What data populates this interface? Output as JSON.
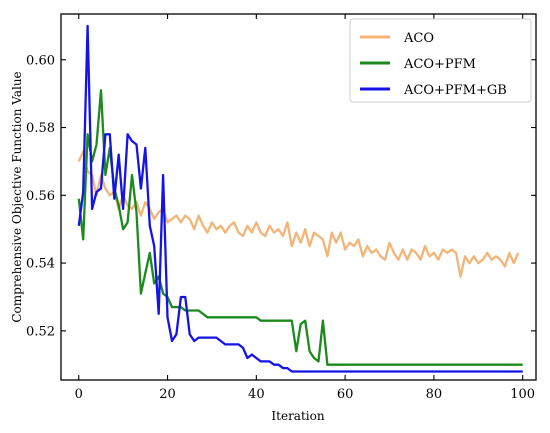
{
  "chart_data": {
    "type": "line",
    "title": "",
    "xlabel": "Iteration",
    "ylabel": "Comprehensive Objective Function Value",
    "xlim": [
      -4,
      103
    ],
    "ylim": [
      0.5055,
      0.6135
    ],
    "xticks": [
      0,
      20,
      40,
      60,
      80,
      100
    ],
    "xtick_labels": [
      "0",
      "20",
      "40",
      "60",
      "80",
      "100"
    ],
    "yticks": [
      0.52,
      0.54,
      0.56,
      0.58,
      0.6
    ],
    "ytick_labels": [
      "0.52",
      "0.54",
      "0.56",
      "0.58",
      "0.60"
    ],
    "grid": false,
    "legend_position": "top-right",
    "series": [
      {
        "name": "ACO",
        "color": "#f2b477",
        "x": [
          0,
          1,
          2,
          3,
          4,
          5,
          6,
          7,
          8,
          9,
          10,
          11,
          12,
          13,
          14,
          15,
          16,
          17,
          18,
          19,
          20,
          21,
          22,
          23,
          24,
          25,
          26,
          27,
          28,
          29,
          30,
          31,
          32,
          33,
          34,
          35,
          36,
          37,
          38,
          39,
          40,
          41,
          42,
          43,
          44,
          45,
          46,
          47,
          48,
          49,
          50,
          51,
          52,
          53,
          54,
          55,
          56,
          57,
          58,
          59,
          60,
          61,
          62,
          63,
          64,
          65,
          66,
          67,
          68,
          69,
          70,
          71,
          72,
          73,
          74,
          75,
          76,
          77,
          78,
          79,
          80,
          81,
          82,
          83,
          84,
          85,
          86,
          87,
          88,
          89,
          90,
          91,
          92,
          93,
          94,
          95,
          96,
          97,
          98,
          99
        ],
        "values": [
          0.57,
          0.573,
          0.567,
          0.566,
          0.56,
          0.566,
          0.562,
          0.56,
          0.561,
          0.556,
          0.56,
          0.557,
          0.556,
          0.558,
          0.554,
          0.558,
          0.556,
          0.553,
          0.555,
          0.556,
          0.552,
          0.553,
          0.554,
          0.552,
          0.554,
          0.553,
          0.55,
          0.554,
          0.551,
          0.549,
          0.552,
          0.55,
          0.551,
          0.549,
          0.551,
          0.552,
          0.549,
          0.548,
          0.551,
          0.549,
          0.552,
          0.549,
          0.548,
          0.551,
          0.549,
          0.55,
          0.548,
          0.552,
          0.545,
          0.549,
          0.546,
          0.55,
          0.545,
          0.549,
          0.548,
          0.547,
          0.542,
          0.549,
          0.546,
          0.549,
          0.544,
          0.546,
          0.545,
          0.547,
          0.542,
          0.545,
          0.543,
          0.544,
          0.542,
          0.541,
          0.546,
          0.543,
          0.541,
          0.544,
          0.541,
          0.544,
          0.543,
          0.541,
          0.545,
          0.542,
          0.543,
          0.541,
          0.544,
          0.543,
          0.544,
          0.543,
          0.536,
          0.542,
          0.54,
          0.542,
          0.54,
          0.541,
          0.543,
          0.541,
          0.542,
          0.541,
          0.539,
          0.543,
          0.54,
          0.543
        ]
      },
      {
        "name": "ACO+PFM",
        "color": "#1d8a1d",
        "x": [
          0,
          1,
          2,
          3,
          4,
          5,
          6,
          7,
          8,
          9,
          10,
          11,
          12,
          13,
          14,
          15,
          16,
          17,
          18,
          19,
          20,
          21,
          22,
          23,
          24,
          25,
          26,
          27,
          28,
          29,
          30,
          40,
          41,
          42,
          43,
          44,
          45,
          46,
          47,
          48,
          49,
          50,
          51,
          52,
          53,
          54,
          55,
          56,
          57,
          100
        ],
        "values": [
          0.559,
          0.547,
          0.578,
          0.57,
          0.575,
          0.591,
          0.566,
          0.574,
          0.562,
          0.557,
          0.55,
          0.552,
          0.566,
          0.555,
          0.531,
          0.537,
          0.543,
          0.534,
          0.536,
          0.531,
          0.53,
          0.527,
          0.527,
          0.527,
          0.526,
          0.526,
          0.526,
          0.526,
          0.525,
          0.524,
          0.524,
          0.524,
          0.523,
          0.523,
          0.523,
          0.523,
          0.523,
          0.523,
          0.523,
          0.523,
          0.514,
          0.522,
          0.523,
          0.514,
          0.512,
          0.511,
          0.523,
          0.51,
          0.51,
          0.51
        ]
      },
      {
        "name": "ACO+PFM+GB",
        "color": "#1414e6",
        "x": [
          0,
          1,
          2,
          3,
          4,
          5,
          6,
          7,
          8,
          9,
          10,
          11,
          12,
          13,
          14,
          15,
          16,
          17,
          18,
          19,
          20,
          21,
          22,
          23,
          24,
          25,
          26,
          27,
          28,
          29,
          30,
          31,
          32,
          33,
          34,
          35,
          36,
          37,
          38,
          39,
          40,
          41,
          42,
          43,
          44,
          45,
          46,
          47,
          48,
          100
        ],
        "values": [
          0.551,
          0.561,
          0.61,
          0.556,
          0.561,
          0.562,
          0.578,
          0.578,
          0.559,
          0.572,
          0.556,
          0.578,
          0.576,
          0.575,
          0.562,
          0.574,
          0.551,
          0.545,
          0.525,
          0.566,
          0.524,
          0.517,
          0.519,
          0.53,
          0.53,
          0.519,
          0.517,
          0.518,
          0.518,
          0.518,
          0.518,
          0.518,
          0.517,
          0.516,
          0.516,
          0.516,
          0.516,
          0.515,
          0.512,
          0.513,
          0.512,
          0.511,
          0.511,
          0.511,
          0.51,
          0.51,
          0.509,
          0.509,
          0.508,
          0.508
        ]
      }
    ]
  }
}
